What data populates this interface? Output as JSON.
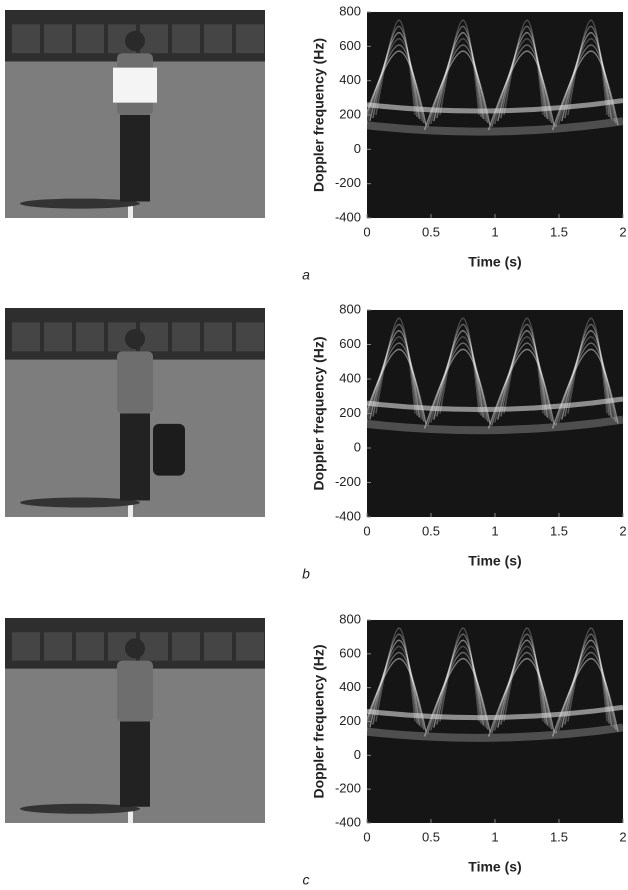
{
  "chart_data": [
    {
      "type": "heatmap",
      "caption": "a",
      "xlabel": "Time (s)",
      "ylabel": "Doppler frequency (Hz)",
      "xlim": [
        0,
        2
      ],
      "ylim": [
        -400,
        800
      ],
      "xticks": [
        0,
        0.5,
        1,
        1.5,
        2
      ],
      "yticks": [
        -400,
        -200,
        0,
        200,
        400,
        600,
        800
      ]
    },
    {
      "type": "heatmap",
      "caption": "b",
      "xlabel": "Time (s)",
      "ylabel": "Doppler frequency (Hz)",
      "xlim": [
        0,
        2
      ],
      "ylim": [
        -400,
        800
      ],
      "xticks": [
        0,
        0.5,
        1,
        1.5,
        2
      ],
      "yticks": [
        -400,
        -200,
        0,
        200,
        400,
        600,
        800
      ]
    },
    {
      "type": "heatmap",
      "caption": "c",
      "xlabel": "Time (s)",
      "ylabel": "Doppler frequency (Hz)",
      "xlim": [
        0,
        2
      ],
      "ylim": [
        -400,
        800
      ],
      "xticks": [
        0,
        0.5,
        1,
        1.5,
        2
      ],
      "yticks": [
        -400,
        -200,
        0,
        200,
        400,
        600,
        800
      ]
    }
  ]
}
